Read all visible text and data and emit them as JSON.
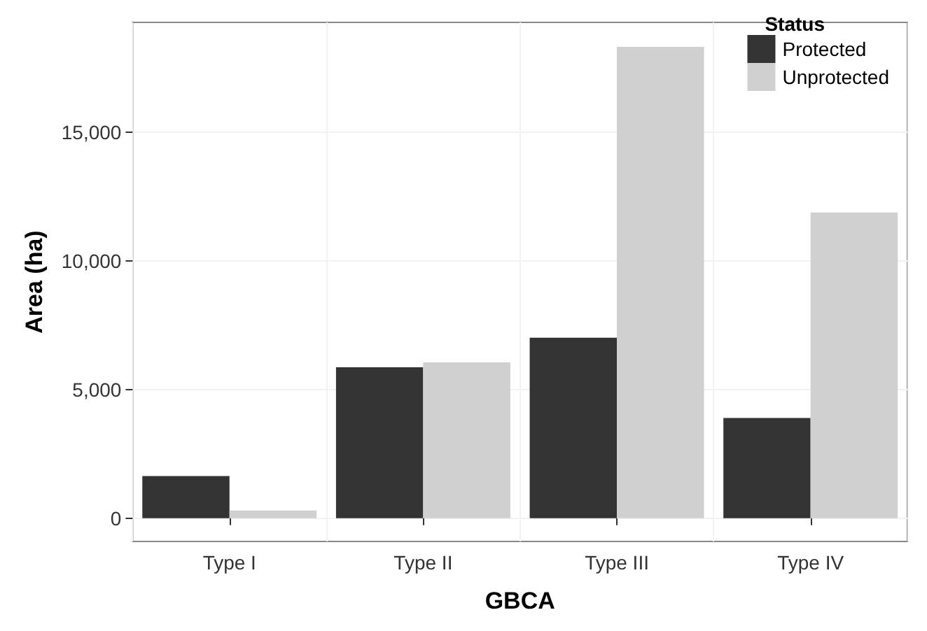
{
  "chart_data": {
    "type": "bar",
    "xlabel": "GBCA",
    "ylabel": "Area (ha)",
    "legend_title": "Status",
    "categories": [
      "Type I",
      "Type II",
      "Type III",
      "Type IV"
    ],
    "series": [
      {
        "name": "Protected",
        "color": "#333333",
        "values": [
          1640,
          5860,
          7010,
          3890
        ]
      },
      {
        "name": "Unprotected",
        "color": "#d0d0d0",
        "values": [
          300,
          6050,
          18300,
          11870
        ]
      }
    ],
    "ylim": [
      -900,
      19250
    ],
    "yticks": [
      {
        "value": 0,
        "label": "0"
      },
      {
        "value": 5000,
        "label": "5,000"
      },
      {
        "value": 10000,
        "label": "10,000"
      },
      {
        "value": 15000,
        "label": "15,000"
      }
    ],
    "grid": true,
    "legend": "top right"
  }
}
